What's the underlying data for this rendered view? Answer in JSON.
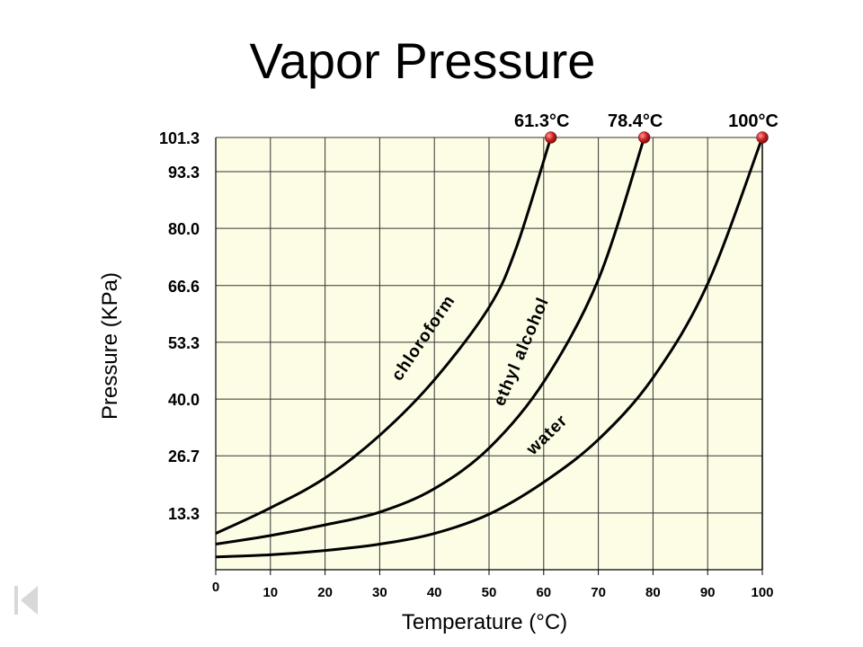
{
  "slide": {
    "title": "Vapor Pressure",
    "nav_icon": "first-slide-icon"
  },
  "chart_data": {
    "type": "line",
    "title": "Vapor Pressure",
    "xlabel": "Temperature (°C)",
    "ylabel": "Pressure (KPa)",
    "xlim": [
      0,
      100
    ],
    "ylim": [
      0,
      101.3
    ],
    "x_ticks": [
      "0",
      "10",
      "20",
      "30",
      "40",
      "50",
      "60",
      "70",
      "80",
      "90",
      "100"
    ],
    "y_ticks": [
      "13.3",
      "26.7",
      "40.0",
      "53.3",
      "66.6",
      "80.0",
      "93.3",
      "101.3"
    ],
    "grid": true,
    "background_color": "#fdfde5",
    "series": [
      {
        "name": "chloroform",
        "color": "#000000",
        "x": [
          0,
          10,
          20,
          30,
          40,
          50,
          55,
          61.3
        ],
        "y": [
          8.5,
          14.5,
          21.5,
          31.5,
          44.5,
          61.5,
          75.5,
          101.3
        ]
      },
      {
        "name": "ethyl alcohol",
        "color": "#000000",
        "x": [
          0,
          10,
          20,
          30,
          40,
          50,
          60,
          70,
          78.4
        ],
        "y": [
          6,
          8,
          10.5,
          13.5,
          19,
          28.5,
          44,
          68,
          101.3
        ]
      },
      {
        "name": "water",
        "color": "#000000",
        "x": [
          0,
          10,
          20,
          30,
          40,
          50,
          60,
          70,
          80,
          90,
          100
        ],
        "y": [
          3,
          3.5,
          4.5,
          6,
          8.5,
          13,
          20.5,
          30.5,
          45,
          67,
          101.3
        ]
      }
    ],
    "annotations": [
      {
        "text": "61.3°C",
        "x": 61.3,
        "y": 101.3
      },
      {
        "text": "78.4°C",
        "x": 78.4,
        "y": 101.3
      },
      {
        "text": "100°C",
        "x": 100,
        "y": 101.3
      }
    ],
    "marker_color": "#cc2222"
  }
}
